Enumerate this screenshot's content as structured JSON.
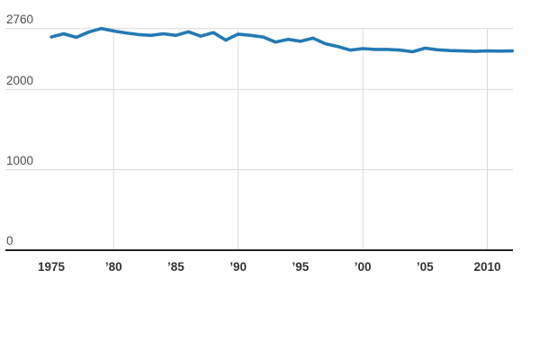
{
  "chart_data": {
    "type": "line",
    "title": "",
    "xlabel": "",
    "ylabel": "",
    "x": [
      1975,
      1976,
      1977,
      1978,
      1979,
      1980,
      1981,
      1982,
      1983,
      1984,
      1985,
      1986,
      1987,
      1988,
      1989,
      1990,
      1991,
      1992,
      1993,
      1994,
      1995,
      1996,
      1997,
      1998,
      1999,
      2000,
      2001,
      2002,
      2003,
      2004,
      2005,
      2006,
      2007,
      2008,
      2009,
      2010,
      2011,
      2012
    ],
    "series": [
      {
        "name": "value",
        "values": [
          2655,
          2695,
          2650,
          2715,
          2760,
          2730,
          2705,
          2685,
          2675,
          2695,
          2675,
          2720,
          2665,
          2710,
          2615,
          2690,
          2675,
          2655,
          2590,
          2625,
          2600,
          2640,
          2570,
          2535,
          2490,
          2510,
          2500,
          2500,
          2490,
          2470,
          2515,
          2495,
          2485,
          2480,
          2475,
          2480,
          2478,
          2480
        ]
      }
    ],
    "xlim": [
      1975,
      2012
    ],
    "ylim": [
      0,
      2760
    ],
    "y_ticks": [
      {
        "value": 0,
        "label": "0"
      },
      {
        "value": 1000,
        "label": "1000"
      },
      {
        "value": 2000,
        "label": "2000"
      },
      {
        "value": 2760,
        "label": "2760"
      }
    ],
    "x_ticks": [
      {
        "value": 1975,
        "label": "1975"
      },
      {
        "value": 1980,
        "label": "’80"
      },
      {
        "value": 1985,
        "label": "’85"
      },
      {
        "value": 1990,
        "label": "’90"
      },
      {
        "value": 1995,
        "label": "’95"
      },
      {
        "value": 2000,
        "label": "’00"
      },
      {
        "value": 2005,
        "label": "’05"
      },
      {
        "value": 2010,
        "label": "2010"
      }
    ],
    "x_gridlines": [
      1980,
      1990,
      2000,
      2010
    ],
    "grid": true,
    "legend": "none",
    "colors": {
      "line": "#2379b4",
      "grid": "#d9d9d9",
      "axis": "#262626",
      "y_tick_label": "#4d4d4d",
      "x_tick_label": "#333333",
      "background": "#ffffff"
    }
  }
}
